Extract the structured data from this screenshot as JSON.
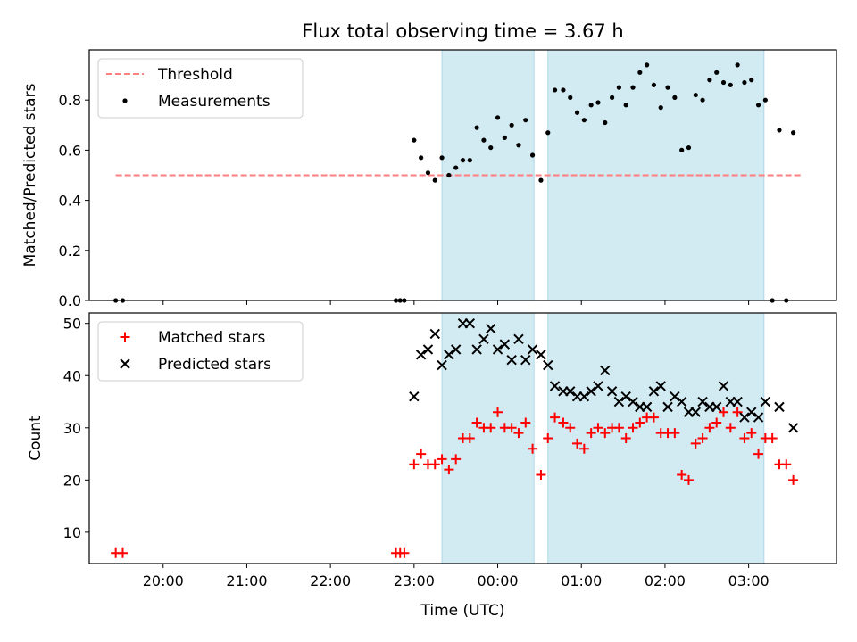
{
  "figure": {
    "title": "Flux total observing time = 3.67 h",
    "xlabel": "Time (UTC)"
  },
  "chart_data": [
    {
      "type": "scatter",
      "ylabel": "Matched/Predicted stars",
      "xlim": [
        "19:07",
        "04:03"
      ],
      "ylim": [
        0,
        1.0
      ],
      "yticks": [
        0.0,
        0.2,
        0.4,
        0.6,
        0.8
      ],
      "xticks": [
        "20:00",
        "21:00",
        "22:00",
        "23:00",
        "00:00",
        "01:00",
        "02:00",
        "03:00"
      ],
      "legend": "top-left",
      "highlight_spans": [
        [
          "23:20",
          "00:26"
        ],
        [
          "00:36",
          "03:11"
        ]
      ],
      "highlight_color": "#add8e6",
      "threshold": {
        "name": "Threshold",
        "value": 0.5,
        "x_range": [
          "19:26",
          "03:39"
        ],
        "color": "#ff7f7f",
        "style": "dashed"
      },
      "series": [
        {
          "name": "Measurements",
          "color": "#000000",
          "marker": "dot",
          "points": [
            [
              "19:26",
              0
            ],
            [
              "19:31",
              0
            ],
            [
              "22:47",
              0
            ],
            [
              "22:50",
              0
            ],
            [
              "22:53",
              0
            ],
            [
              "23:00",
              0.64
            ],
            [
              "23:05",
              0.57
            ],
            [
              "23:10",
              0.51
            ],
            [
              "23:15",
              0.48
            ],
            [
              "23:20",
              0.57
            ],
            [
              "23:25",
              0.5
            ],
            [
              "23:30",
              0.53
            ],
            [
              "23:35",
              0.56
            ],
            [
              "23:40",
              0.56
            ],
            [
              "23:45",
              0.69
            ],
            [
              "23:50",
              0.64
            ],
            [
              "23:55",
              0.61
            ],
            [
              "00:00",
              0.73
            ],
            [
              "00:05",
              0.65
            ],
            [
              "00:10",
              0.7
            ],
            [
              "00:15",
              0.62
            ],
            [
              "00:20",
              0.72
            ],
            [
              "00:25",
              0.58
            ],
            [
              "00:31",
              0.48
            ],
            [
              "00:36",
              0.67
            ],
            [
              "00:41",
              0.84
            ],
            [
              "00:47",
              0.84
            ],
            [
              "00:52",
              0.81
            ],
            [
              "00:57",
              0.75
            ],
            [
              "01:02",
              0.72
            ],
            [
              "01:07",
              0.78
            ],
            [
              "01:12",
              0.79
            ],
            [
              "01:17",
              0.71
            ],
            [
              "01:22",
              0.81
            ],
            [
              "01:27",
              0.85
            ],
            [
              "01:32",
              0.78
            ],
            [
              "01:37",
              0.85
            ],
            [
              "01:42",
              0.91
            ],
            [
              "01:47",
              0.94
            ],
            [
              "01:52",
              0.86
            ],
            [
              "01:57",
              0.77
            ],
            [
              "02:02",
              0.85
            ],
            [
              "02:07",
              0.81
            ],
            [
              "02:12",
              0.6
            ],
            [
              "02:17",
              0.61
            ],
            [
              "02:22",
              0.82
            ],
            [
              "02:27",
              0.8
            ],
            [
              "02:32",
              0.88
            ],
            [
              "02:37",
              0.91
            ],
            [
              "02:42",
              0.87
            ],
            [
              "02:47",
              0.86
            ],
            [
              "02:52",
              0.94
            ],
            [
              "02:57",
              0.87
            ],
            [
              "03:02",
              0.88
            ],
            [
              "03:07",
              0.78
            ],
            [
              "03:12",
              0.8
            ],
            [
              "03:17",
              0
            ],
            [
              "03:22",
              0.68
            ],
            [
              "03:27",
              0
            ],
            [
              "03:32",
              0.67
            ]
          ]
        }
      ]
    },
    {
      "type": "scatter",
      "ylabel": "Count",
      "xlim": [
        "19:07",
        "04:03"
      ],
      "ylim": [
        4,
        52
      ],
      "yticks": [
        10,
        20,
        30,
        40,
        50
      ],
      "xticks": [
        "20:00",
        "21:00",
        "22:00",
        "23:00",
        "00:00",
        "01:00",
        "02:00",
        "03:00"
      ],
      "legend": "top-left",
      "highlight_spans": [
        [
          "23:20",
          "00:26"
        ],
        [
          "00:36",
          "03:11"
        ]
      ],
      "highlight_color": "#add8e6",
      "series": [
        {
          "name": "Matched stars",
          "color": "#ff0000",
          "marker": "plus",
          "points": [
            [
              "19:26",
              6
            ],
            [
              "19:31",
              6
            ],
            [
              "22:47",
              6
            ],
            [
              "22:50",
              6
            ],
            [
              "22:53",
              6
            ],
            [
              "23:00",
              23
            ],
            [
              "23:05",
              25
            ],
            [
              "23:10",
              23
            ],
            [
              "23:15",
              23
            ],
            [
              "23:20",
              24
            ],
            [
              "23:25",
              22
            ],
            [
              "23:30",
              24
            ],
            [
              "23:35",
              28
            ],
            [
              "23:40",
              28
            ],
            [
              "23:45",
              31
            ],
            [
              "23:50",
              30
            ],
            [
              "23:55",
              30
            ],
            [
              "00:00",
              33
            ],
            [
              "00:05",
              30
            ],
            [
              "00:10",
              30
            ],
            [
              "00:15",
              29
            ],
            [
              "00:20",
              31
            ],
            [
              "00:25",
              26
            ],
            [
              "00:31",
              21
            ],
            [
              "00:36",
              28
            ],
            [
              "00:41",
              32
            ],
            [
              "00:47",
              31
            ],
            [
              "00:52",
              30
            ],
            [
              "00:57",
              27
            ],
            [
              "01:02",
              26
            ],
            [
              "01:07",
              29
            ],
            [
              "01:12",
              30
            ],
            [
              "01:17",
              29
            ],
            [
              "01:22",
              30
            ],
            [
              "01:27",
              30
            ],
            [
              "01:32",
              28
            ],
            [
              "01:37",
              30
            ],
            [
              "01:42",
              31
            ],
            [
              "01:47",
              32
            ],
            [
              "01:52",
              32
            ],
            [
              "01:57",
              29
            ],
            [
              "02:02",
              29
            ],
            [
              "02:07",
              29
            ],
            [
              "02:12",
              21
            ],
            [
              "02:17",
              20
            ],
            [
              "02:22",
              27
            ],
            [
              "02:27",
              28
            ],
            [
              "02:32",
              30
            ],
            [
              "02:37",
              31
            ],
            [
              "02:42",
              33
            ],
            [
              "02:47",
              30
            ],
            [
              "02:52",
              33
            ],
            [
              "02:57",
              28
            ],
            [
              "03:02",
              29
            ],
            [
              "03:07",
              25
            ],
            [
              "03:12",
              28
            ],
            [
              "03:17",
              28
            ],
            [
              "03:22",
              23
            ],
            [
              "03:27",
              23
            ],
            [
              "03:32",
              20
            ]
          ]
        },
        {
          "name": "Predicted stars",
          "color": "#000000",
          "marker": "x",
          "points": [
            [
              "23:00",
              36
            ],
            [
              "23:05",
              44
            ],
            [
              "23:10",
              45
            ],
            [
              "23:15",
              48
            ],
            [
              "23:20",
              42
            ],
            [
              "23:25",
              44
            ],
            [
              "23:30",
              45
            ],
            [
              "23:35",
              50
            ],
            [
              "23:40",
              50
            ],
            [
              "23:45",
              45
            ],
            [
              "23:50",
              47
            ],
            [
              "23:55",
              49
            ],
            [
              "00:00",
              45
            ],
            [
              "00:05",
              46
            ],
            [
              "00:10",
              43
            ],
            [
              "00:15",
              47
            ],
            [
              "00:20",
              43
            ],
            [
              "00:25",
              45
            ],
            [
              "00:31",
              44
            ],
            [
              "00:36",
              42
            ],
            [
              "00:41",
              38
            ],
            [
              "00:47",
              37
            ],
            [
              "00:52",
              37
            ],
            [
              "00:57",
              36
            ],
            [
              "01:02",
              36
            ],
            [
              "01:07",
              37
            ],
            [
              "01:12",
              38
            ],
            [
              "01:17",
              41
            ],
            [
              "01:22",
              37
            ],
            [
              "01:27",
              35
            ],
            [
              "01:32",
              36
            ],
            [
              "01:37",
              35
            ],
            [
              "01:42",
              34
            ],
            [
              "01:47",
              34
            ],
            [
              "01:52",
              37
            ],
            [
              "01:57",
              38
            ],
            [
              "02:02",
              34
            ],
            [
              "02:07",
              36
            ],
            [
              "02:12",
              35
            ],
            [
              "02:17",
              33
            ],
            [
              "02:22",
              33
            ],
            [
              "02:27",
              35
            ],
            [
              "02:32",
              34
            ],
            [
              "02:37",
              34
            ],
            [
              "02:42",
              38
            ],
            [
              "02:47",
              35
            ],
            [
              "02:52",
              35
            ],
            [
              "02:57",
              32
            ],
            [
              "03:02",
              33
            ],
            [
              "03:07",
              32
            ],
            [
              "03:12",
              35
            ],
            [
              "03:22",
              34
            ],
            [
              "03:32",
              30
            ]
          ]
        }
      ]
    }
  ]
}
